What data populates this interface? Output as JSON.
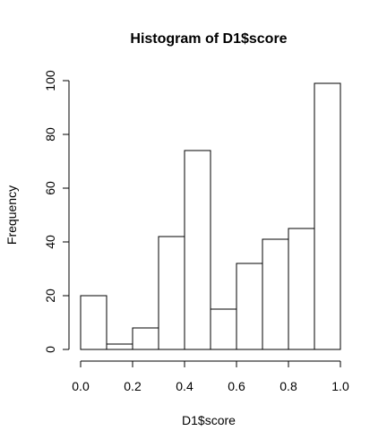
{
  "chart_data": {
    "type": "bar",
    "title": "Histogram of D1$score",
    "xlabel": "D1$score",
    "ylabel": "Frequency",
    "bins": [
      {
        "from": 0.0,
        "to": 0.1,
        "count": 20
      },
      {
        "from": 0.1,
        "to": 0.2,
        "count": 2
      },
      {
        "from": 0.2,
        "to": 0.3,
        "count": 8
      },
      {
        "from": 0.3,
        "to": 0.4,
        "count": 42
      },
      {
        "from": 0.4,
        "to": 0.5,
        "count": 74
      },
      {
        "from": 0.5,
        "to": 0.6,
        "count": 15
      },
      {
        "from": 0.6,
        "to": 0.7,
        "count": 32
      },
      {
        "from": 0.7,
        "to": 0.8,
        "count": 41
      },
      {
        "from": 0.8,
        "to": 0.9,
        "count": 45
      },
      {
        "from": 0.9,
        "to": 1.0,
        "count": 99
      }
    ],
    "xlim": [
      0,
      1
    ],
    "ylim": [
      0,
      100
    ],
    "xticks": [
      "0.0",
      "0.2",
      "0.4",
      "0.6",
      "0.8",
      "1.0"
    ],
    "yticks": [
      "0",
      "20",
      "40",
      "60",
      "80",
      "100"
    ],
    "grid": false,
    "legend": "none"
  }
}
